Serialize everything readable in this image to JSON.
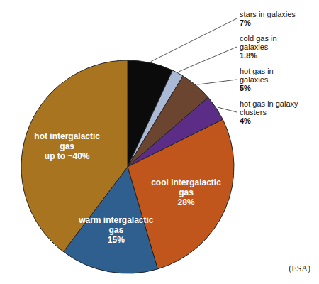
{
  "chart_data": {
    "type": "pie",
    "categories": [
      "stars in galaxies",
      "cold gas in galaxies",
      "hot gas in galaxies",
      "hot gas in galaxy clusters",
      "cool intergalactic gas",
      "warm intergalactic gas",
      "hot intergalactic gas"
    ],
    "values": [
      7,
      1.8,
      5,
      4,
      28,
      15,
      40
    ],
    "value_labels": [
      "7%",
      "1.8%",
      "5%",
      "4%",
      "28%",
      "15%",
      "up to ~40%"
    ],
    "colors": [
      "#0b0b0b",
      "#a9b9d6",
      "#6b4530",
      "#5b2d86",
      "#c0561c",
      "#2f5f8f",
      "#a8741f"
    ],
    "data_labels": true,
    "annotations": [
      "(ESA)"
    ]
  }
}
